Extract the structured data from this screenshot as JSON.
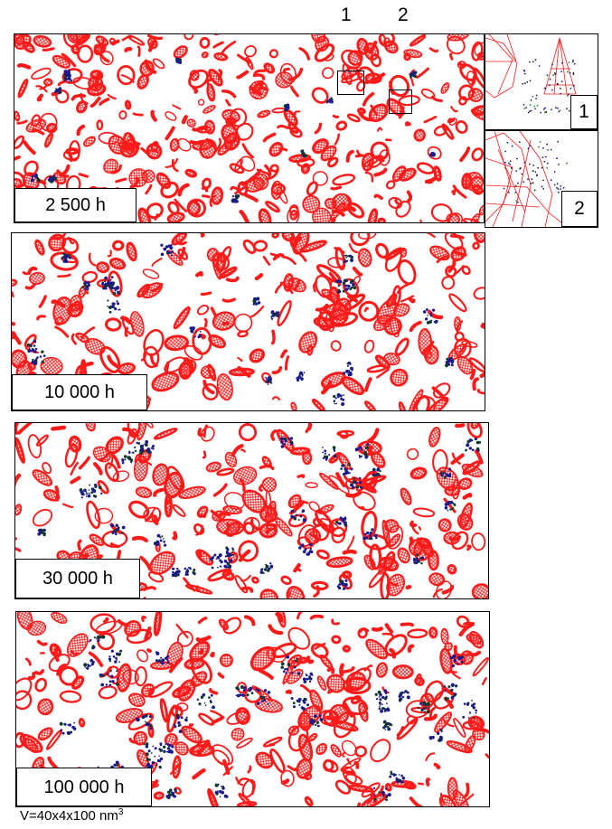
{
  "markers": [
    "1",
    "2"
  ],
  "panels": [
    {
      "label": "2 500 h",
      "clusters": 14,
      "cluster_size": "small"
    },
    {
      "label": "10 000 h",
      "clusters": 22,
      "cluster_size": "medium"
    },
    {
      "label": "30 000 h",
      "clusters": 30,
      "cluster_size": "medium"
    },
    {
      "label": "100 000 h",
      "clusters": 34,
      "cluster_size": "large"
    }
  ],
  "insets": [
    {
      "tag": "1"
    },
    {
      "tag": "2"
    }
  ],
  "caption": {
    "text": "V=40x4x100 nm",
    "superscript": "3"
  },
  "colors": {
    "network": "#ff1a1a",
    "cluster": "#1a1a8c",
    "cluster_core": "#0b3a2a",
    "frame": "#000000"
  }
}
